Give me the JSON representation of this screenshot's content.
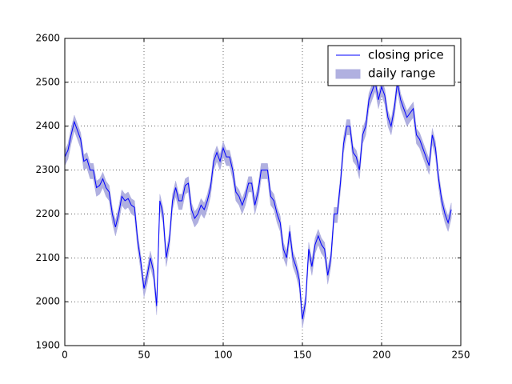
{
  "chart_data": {
    "type": "line_range",
    "x": [
      0,
      2,
      4,
      6,
      8,
      10,
      12,
      14,
      16,
      18,
      20,
      22,
      24,
      26,
      28,
      30,
      32,
      34,
      36,
      38,
      40,
      42,
      44,
      46,
      48,
      50,
      52,
      54,
      56,
      58,
      60,
      62,
      64,
      66,
      68,
      70,
      72,
      74,
      76,
      78,
      80,
      82,
      84,
      86,
      88,
      90,
      92,
      94,
      96,
      98,
      100,
      102,
      104,
      106,
      108,
      110,
      112,
      114,
      116,
      118,
      120,
      122,
      124,
      126,
      128,
      130,
      132,
      134,
      136,
      138,
      140,
      142,
      144,
      146,
      148,
      150,
      152,
      154,
      156,
      158,
      160,
      162,
      164,
      166,
      168,
      170,
      172,
      174,
      176,
      178,
      180,
      182,
      184,
      186,
      188,
      190,
      192,
      194,
      196,
      198,
      200,
      202,
      204,
      206,
      208,
      210,
      212,
      214,
      216,
      218,
      220,
      222,
      224,
      226,
      228,
      230,
      232,
      234,
      236,
      238,
      240,
      242,
      244
    ],
    "series": [
      {
        "name": "closing price",
        "color": "#0000ff",
        "values": [
          2330,
          2345,
          2380,
          2410,
          2390,
          2370,
          2320,
          2325,
          2300,
          2300,
          2260,
          2265,
          2280,
          2260,
          2250,
          2200,
          2170,
          2200,
          2240,
          2230,
          2235,
          2220,
          2215,
          2140,
          2090,
          2030,
          2060,
          2100,
          2070,
          1990,
          2230,
          2200,
          2100,
          2140,
          2230,
          2260,
          2230,
          2230,
          2265,
          2270,
          2210,
          2190,
          2200,
          2220,
          2210,
          2230,
          2260,
          2320,
          2340,
          2320,
          2350,
          2330,
          2330,
          2300,
          2250,
          2240,
          2220,
          2240,
          2270,
          2270,
          2220,
          2250,
          2300,
          2300,
          2300,
          2240,
          2230,
          2200,
          2180,
          2120,
          2100,
          2160,
          2100,
          2080,
          2050,
          1960,
          2000,
          2120,
          2080,
          2130,
          2150,
          2130,
          2120,
          2060,
          2100,
          2200,
          2200,
          2270,
          2360,
          2400,
          2400,
          2340,
          2330,
          2300,
          2380,
          2400,
          2460,
          2480,
          2500,
          2460,
          2490,
          2470,
          2420,
          2400,
          2440,
          2500,
          2460,
          2440,
          2420,
          2430,
          2440,
          2380,
          2370,
          2350,
          2330,
          2310,
          2380,
          2350,
          2280,
          2230,
          2200,
          2180,
          2210
        ]
      },
      {
        "name": "daily range",
        "color": "#b0b0e0",
        "high": [
          2345,
          2360,
          2395,
          2425,
          2405,
          2385,
          2335,
          2340,
          2315,
          2315,
          2275,
          2280,
          2295,
          2275,
          2265,
          2215,
          2185,
          2215,
          2255,
          2245,
          2250,
          2235,
          2230,
          2155,
          2105,
          2045,
          2075,
          2115,
          2085,
          2005,
          2245,
          2215,
          2115,
          2155,
          2245,
          2275,
          2245,
          2245,
          2280,
          2285,
          2225,
          2205,
          2215,
          2235,
          2225,
          2245,
          2275,
          2335,
          2355,
          2335,
          2365,
          2345,
          2345,
          2315,
          2265,
          2255,
          2235,
          2255,
          2285,
          2285,
          2235,
          2265,
          2315,
          2315,
          2315,
          2255,
          2245,
          2215,
          2195,
          2135,
          2115,
          2175,
          2115,
          2095,
          2065,
          1975,
          2015,
          2135,
          2095,
          2145,
          2165,
          2145,
          2135,
          2075,
          2115,
          2215,
          2215,
          2285,
          2375,
          2415,
          2415,
          2355,
          2345,
          2315,
          2395,
          2415,
          2475,
          2495,
          2515,
          2475,
          2505,
          2485,
          2435,
          2415,
          2455,
          2515,
          2475,
          2455,
          2435,
          2445,
          2455,
          2395,
          2385,
          2365,
          2345,
          2325,
          2395,
          2365,
          2295,
          2245,
          2215,
          2195,
          2225
        ],
        "low": [
          2310,
          2325,
          2360,
          2390,
          2370,
          2350,
          2300,
          2305,
          2280,
          2280,
          2240,
          2245,
          2260,
          2240,
          2230,
          2180,
          2150,
          2180,
          2220,
          2210,
          2215,
          2200,
          2195,
          2120,
          2070,
          2010,
          2040,
          2080,
          2050,
          1970,
          2210,
          2180,
          2080,
          2120,
          2210,
          2240,
          2210,
          2210,
          2245,
          2250,
          2190,
          2170,
          2180,
          2200,
          2190,
          2210,
          2240,
          2300,
          2320,
          2300,
          2330,
          2310,
          2310,
          2280,
          2230,
          2220,
          2200,
          2220,
          2250,
          2250,
          2200,
          2230,
          2280,
          2280,
          2280,
          2220,
          2210,
          2180,
          2160,
          2100,
          2080,
          2140,
          2080,
          2060,
          2030,
          1940,
          1980,
          2100,
          2060,
          2110,
          2130,
          2110,
          2100,
          2040,
          2080,
          2180,
          2180,
          2250,
          2340,
          2380,
          2380,
          2320,
          2310,
          2280,
          2360,
          2380,
          2440,
          2460,
          2480,
          2440,
          2470,
          2450,
          2400,
          2380,
          2420,
          2480,
          2440,
          2420,
          2400,
          2410,
          2420,
          2360,
          2350,
          2330,
          2310,
          2290,
          2360,
          2330,
          2260,
          2210,
          2180,
          2160,
          2190
        ]
      }
    ],
    "xlim": [
      0,
      250
    ],
    "xticks": [
      0,
      50,
      100,
      150,
      200,
      250
    ],
    "ylim": [
      1900,
      2600
    ],
    "yticks": [
      1900,
      2000,
      2100,
      2200,
      2300,
      2400,
      2500,
      2600
    ],
    "grid": true,
    "legend": "upper right"
  }
}
